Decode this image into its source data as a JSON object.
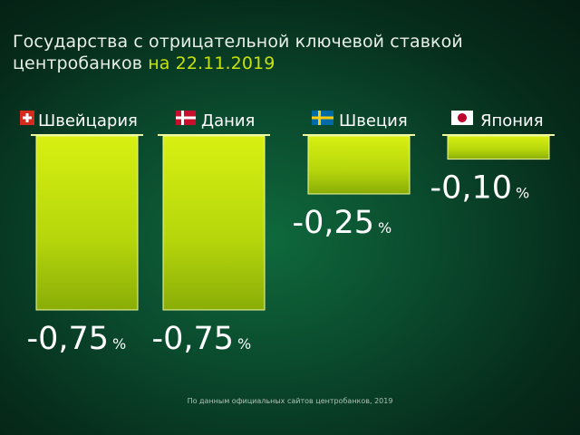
{
  "header": {
    "title_line1": "Государства с отрицательной ключевой ставкой",
    "title_line2_prefix": "центробанков",
    "title_line2_date": "на 22.11.2019"
  },
  "chart_data": {
    "type": "bar",
    "title": "Государства с отрицательной ключевой ставкой центробанков на 22.11.2019",
    "categories": [
      "Швейцария",
      "Дания",
      "Швеция",
      "Япония"
    ],
    "values": [
      -0.75,
      -0.75,
      -0.25,
      -0.1
    ],
    "value_labels": [
      "-0,75",
      "-0,75",
      "-0,25",
      "-0,10"
    ],
    "unit": "%",
    "flags": [
      "swiss-flag-icon",
      "danish-flag-icon",
      "swedish-flag-icon",
      "japanese-flag-icon"
    ],
    "ylim": [
      -0.75,
      0
    ],
    "grid": false,
    "legend": "none",
    "colors": {
      "bar_top": "#c9e80c",
      "bar_bottom": "#8fb208",
      "bar_border": "#eef8a0",
      "accent": "#c7e20a"
    }
  },
  "footer": {
    "source": "По данным официальных сайтов центробанков, 2019"
  }
}
